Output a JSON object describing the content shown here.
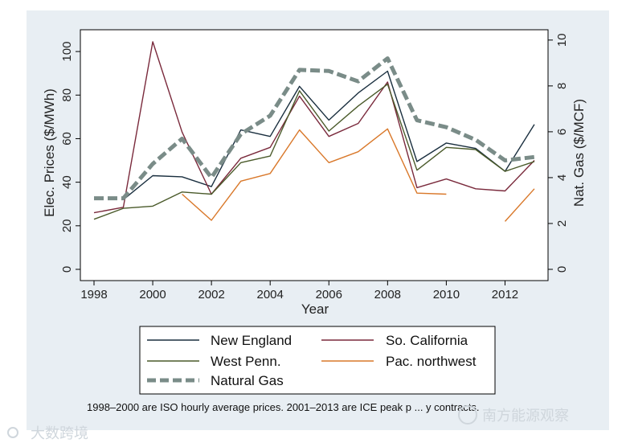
{
  "chart_data": {
    "type": "line",
    "title": "",
    "xlabel": "Year",
    "ylabel_left": "Elec. Prices ($/MWh)",
    "ylabel_right": "Nat. Gas ($/MCF)",
    "xlim": [
      1998,
      2013
    ],
    "ylim_left": [
      0,
      110
    ],
    "ylim_right": [
      0,
      10.45
    ],
    "xticks": [
      1998,
      2000,
      2002,
      2004,
      2006,
      2008,
      2010,
      2012
    ],
    "yticks_left": [
      0,
      20,
      40,
      60,
      80,
      100
    ],
    "yticks_right": [
      0,
      2,
      4,
      6,
      8,
      10
    ],
    "series": [
      {
        "name": "New England",
        "axis": "left",
        "color": "#1a2f3f",
        "style": "solid",
        "x": [
          1998,
          1999,
          2000,
          2001,
          2002,
          2003,
          2004,
          2005,
          2006,
          2007,
          2008,
          2009,
          2010,
          2011,
          2012,
          2013
        ],
        "values": [
          null,
          32,
          43,
          42.5,
          38,
          64,
          61,
          84,
          68.5,
          81,
          91,
          49.5,
          58,
          55.5,
          45,
          66.5
        ]
      },
      {
        "name": "So. California",
        "axis": "left",
        "color": "#7a2a3c",
        "style": "solid",
        "x": [
          1998,
          1999,
          2000,
          2001,
          2002,
          2003,
          2004,
          2005,
          2006,
          2007,
          2008,
          2009,
          2010,
          2011,
          2012,
          2013
        ],
        "values": [
          26,
          28.5,
          104.5,
          63,
          34.5,
          51,
          56,
          79.5,
          61,
          67,
          86,
          37.5,
          41.5,
          37,
          36,
          50
        ]
      },
      {
        "name": "West Penn.",
        "axis": "left",
        "color": "#4a5a2a",
        "style": "solid",
        "x": [
          1998,
          1999,
          2000,
          2001,
          2002,
          2003,
          2004,
          2005,
          2006,
          2007,
          2008,
          2009,
          2010,
          2011,
          2012,
          2013
        ],
        "values": [
          23,
          28,
          29,
          35.5,
          34.5,
          49,
          52,
          82,
          63.5,
          75,
          85,
          45.5,
          56,
          55,
          45,
          49.5
        ]
      },
      {
        "name": "Pac. northwest",
        "axis": "left",
        "color": "#d9782a",
        "style": "solid",
        "x": [
          1998,
          1999,
          2000,
          2001,
          2002,
          2003,
          2004,
          2005,
          2006,
          2007,
          2008,
          2009,
          2010,
          2011,
          2012,
          2013
        ],
        "values": [
          null,
          null,
          null,
          34.5,
          22.5,
          40.5,
          44,
          64,
          49,
          54,
          64.5,
          35,
          34.5,
          null,
          22,
          37
        ]
      },
      {
        "name": "Natural Gas",
        "axis": "right",
        "color": "#7a8c88",
        "style": "dashed",
        "x": [
          1998,
          1999,
          2000,
          2001,
          2002,
          2003,
          2004,
          2005,
          2006,
          2007,
          2008,
          2009,
          2010,
          2011,
          2012,
          2013
        ],
        "values": [
          3.1,
          3.1,
          4.6,
          5.7,
          4.0,
          5.9,
          6.7,
          8.7,
          8.65,
          8.2,
          9.2,
          6.5,
          6.2,
          5.65,
          4.75,
          4.9
        ]
      }
    ],
    "legend_position": "bottom",
    "legend_entries": [
      "New England",
      "So. California",
      "West Penn.",
      "Pac. northwest",
      "Natural Gas"
    ],
    "note": "1998–2000 are ISO hourly average prices. 2001–2013 are ICE peak p ... y contracts."
  },
  "watermark": {
    "left_text": "大数跨境",
    "right_text": "南方能源观察"
  }
}
